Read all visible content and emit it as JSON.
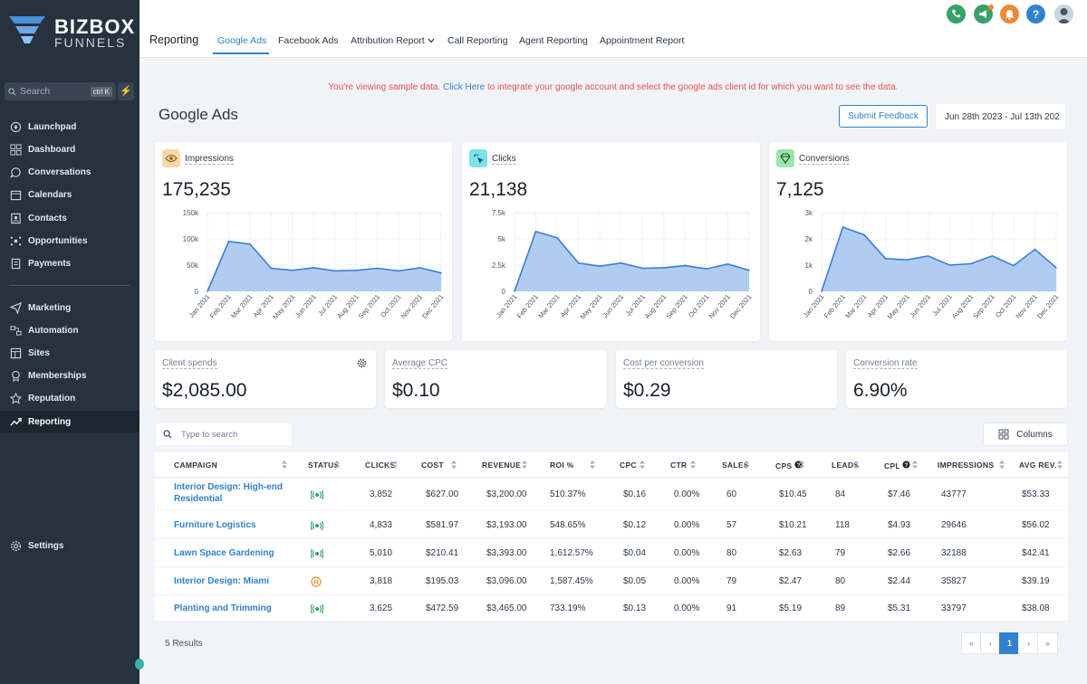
{
  "brand": {
    "line1": "BIZBOX",
    "line2": "FUNNELS"
  },
  "sidebar": {
    "search_placeholder": "Search",
    "shortcut": "ctrl K",
    "items": [
      {
        "label": "Launchpad"
      },
      {
        "label": "Dashboard"
      },
      {
        "label": "Conversations"
      },
      {
        "label": "Calendars"
      },
      {
        "label": "Contacts"
      },
      {
        "label": "Opportunities"
      },
      {
        "label": "Payments"
      },
      {
        "label": "Marketing"
      },
      {
        "label": "Automation"
      },
      {
        "label": "Sites"
      },
      {
        "label": "Memberships"
      },
      {
        "label": "Reputation"
      },
      {
        "label": "Reporting"
      },
      {
        "label": "Settings"
      }
    ],
    "active": "Reporting"
  },
  "header": {
    "title": "Reporting",
    "tabs": [
      {
        "label": "Google Ads"
      },
      {
        "label": "Facebook Ads"
      },
      {
        "label": "Attribution Report"
      },
      {
        "label": "Call Reporting"
      },
      {
        "label": "Agent Reporting"
      },
      {
        "label": "Appointment Report"
      }
    ],
    "active_tab": "Google Ads",
    "icons": [
      "phone-icon",
      "megaphone-icon",
      "bell-icon",
      "help-icon",
      "avatar"
    ]
  },
  "notice": {
    "before": "You're viewing sample data.",
    "link": "Click Here",
    "after": "to integrate your google account and select the google ads client id for which you want to see the data."
  },
  "page": {
    "title": "Google Ads",
    "feedback_button": "Submit Feedback",
    "date_range": "Jun 28th 2023 - Jul 13th 202"
  },
  "metrics": [
    {
      "label": "Impressions",
      "value": "175,235",
      "icon": "eye-icon",
      "color": "#f6d8a8"
    },
    {
      "label": "Clicks",
      "value": "21,138",
      "icon": "cursor-click-icon",
      "color": "#7ee0e8"
    },
    {
      "label": "Conversions",
      "value": "7,125",
      "icon": "diamond-icon",
      "color": "#9ae6a8"
    }
  ],
  "chart_data": [
    {
      "type": "area",
      "title": "Impressions",
      "x": [
        "Jan 2021",
        "Feb 2021",
        "Mar 2021",
        "Apr 2021",
        "May 2021",
        "Jun 2021",
        "Jul 2021",
        "Aug 2021",
        "Sep 2021",
        "Oct 2021",
        "Nov 2021",
        "Dec 2021"
      ],
      "y_ticks": [
        "150k",
        "100k",
        "50k",
        "0"
      ],
      "ylim": [
        0,
        150000
      ],
      "values": [
        0,
        95000,
        90000,
        44000,
        40000,
        45000,
        39000,
        40000,
        44000,
        39000,
        45000,
        35000
      ]
    },
    {
      "type": "area",
      "title": "Clicks",
      "x": [
        "Jan 2021",
        "Feb 2021",
        "Mar 2021",
        "Apr 2021",
        "May 2021",
        "Jun 2021",
        "Jul 2021",
        "Aug 2021",
        "Sep 2021",
        "Oct 2021",
        "Nov 2021",
        "Dec 2021"
      ],
      "y_ticks": [
        "7.5k",
        "5k",
        "2.5k",
        "0"
      ],
      "ylim": [
        0,
        7500
      ],
      "values": [
        0,
        5700,
        5100,
        2700,
        2400,
        2700,
        2200,
        2250,
        2450,
        2150,
        2600,
        2000
      ]
    },
    {
      "type": "area",
      "title": "Conversions",
      "x": [
        "Jan 2021",
        "Feb 2021",
        "Mar 2021",
        "Apr 2021",
        "May 2021",
        "Jun 2021",
        "Jul 2021",
        "Aug 2021",
        "Sep 2021",
        "Oct 2021",
        "Nov 2021",
        "Dec 2021"
      ],
      "y_ticks": [
        "3k",
        "2k",
        "1k",
        "0"
      ],
      "ylim": [
        0,
        3000
      ],
      "values": [
        0,
        2450,
        2150,
        1250,
        1200,
        1350,
        1000,
        1050,
        1350,
        980,
        1600,
        900
      ]
    }
  ],
  "stats": [
    {
      "label": "Client spends",
      "value": "$2,085.00"
    },
    {
      "label": "Average CPC",
      "value": "$0.10"
    },
    {
      "label": "Cost per conversion",
      "value": "$0.29"
    },
    {
      "label": "Conversion rate",
      "value": "6.90%"
    }
  ],
  "table": {
    "search_placeholder": "Type to search",
    "columns_button": "Columns",
    "headers": [
      "CAMPAIGN",
      "STATUS",
      "CLICKS",
      "COST",
      "REVENUE",
      "ROI %",
      "CPC",
      "CTR",
      "SALES",
      "CPS",
      "LEADS",
      "CPL",
      "IMPRESSIONS",
      "AVG REV."
    ],
    "rows": [
      {
        "campaign": "Interior Design: High-end Residential",
        "status": "active",
        "clicks": "3,852",
        "cost": "$627.00",
        "revenue": "$3,200.00",
        "roi": "510.37%",
        "cpc": "$0.16",
        "ctr": "0.00%",
        "sales": "60",
        "cps": "$10.45",
        "leads": "84",
        "cpl": "$7.46",
        "impressions": "43777",
        "avg_rev": "$53.33"
      },
      {
        "campaign": "Furniture Logistics",
        "status": "active",
        "clicks": "4,833",
        "cost": "$581.97",
        "revenue": "$3,193.00",
        "roi": "548.65%",
        "cpc": "$0.12",
        "ctr": "0.00%",
        "sales": "57",
        "cps": "$10.21",
        "leads": "118",
        "cpl": "$4.93",
        "impressions": "29646",
        "avg_rev": "$56.02"
      },
      {
        "campaign": "Lawn Space Gardening",
        "status": "active",
        "clicks": "5,010",
        "cost": "$210.41",
        "revenue": "$3,393.00",
        "roi": "1,612.57%",
        "cpc": "$0.04",
        "ctr": "0.00%",
        "sales": "80",
        "cps": "$2.63",
        "leads": "79",
        "cpl": "$2.66",
        "impressions": "32188",
        "avg_rev": "$42.41"
      },
      {
        "campaign": "Interior Design: Miami",
        "status": "paused",
        "clicks": "3,818",
        "cost": "$195.03",
        "revenue": "$3,096.00",
        "roi": "1,587.45%",
        "cpc": "$0.05",
        "ctr": "0.00%",
        "sales": "79",
        "cps": "$2.47",
        "leads": "80",
        "cpl": "$2.44",
        "impressions": "35827",
        "avg_rev": "$39.19"
      },
      {
        "campaign": "Planting and Trimming",
        "status": "active",
        "clicks": "3,625",
        "cost": "$472.59",
        "revenue": "$3,465.00",
        "roi": "733.19%",
        "cpc": "$0.13",
        "ctr": "0.00%",
        "sales": "91",
        "cps": "$5.19",
        "leads": "89",
        "cpl": "$5.31",
        "impressions": "33797",
        "avg_rev": "$38.08"
      }
    ],
    "results": "5 Results",
    "pagination": {
      "first": "«",
      "prev": "‹",
      "current": "1",
      "next": "›",
      "last": "»"
    }
  },
  "colors": {
    "accent": "#3182ce",
    "sidebar": "#27323f",
    "notice": "#e55353",
    "area_fill": "#a8c7f0",
    "area_line": "#3b7dd8"
  }
}
